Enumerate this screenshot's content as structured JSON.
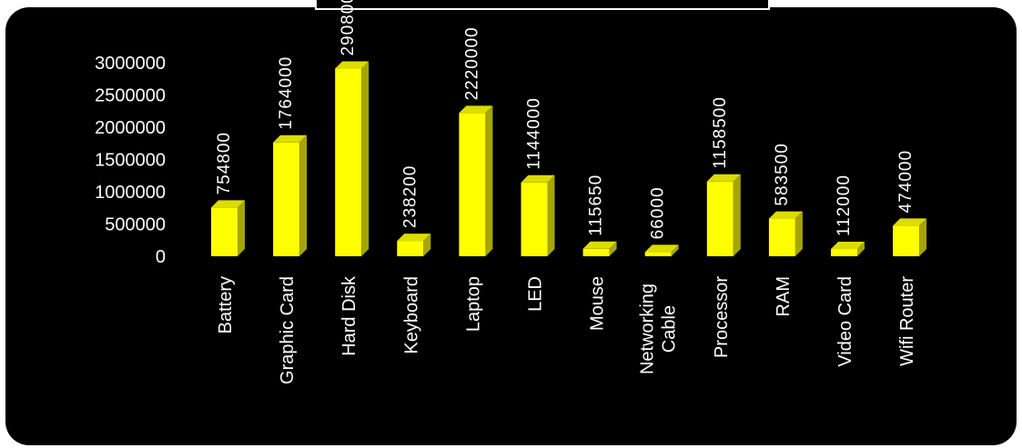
{
  "chart_data": {
    "type": "bar",
    "title": "",
    "xlabel": "",
    "ylabel": "",
    "ylim": [
      0,
      3000000
    ],
    "y_ticks": [
      0,
      500000,
      1000000,
      1500000,
      2000000,
      2500000,
      3000000
    ],
    "y_tick_labels": [
      "0",
      "500000",
      "1000000",
      "1500000",
      "2000000",
      "2500000",
      "3000000"
    ],
    "categories": [
      "Battery",
      "Graphic Card",
      "Hard Disk",
      "Keyboard",
      "Laptop",
      "LED",
      "Mouse",
      "Networking Cable",
      "Processor",
      "RAM",
      "Video Card",
      "Wifi Router"
    ],
    "category_lines": [
      [
        "Battery"
      ],
      [
        "Graphic Card"
      ],
      [
        "Hard Disk"
      ],
      [
        "Keyboard"
      ],
      [
        "Laptop"
      ],
      [
        "LED"
      ],
      [
        "Mouse"
      ],
      [
        "Networking",
        "Cable"
      ],
      [
        "Processor"
      ],
      [
        "RAM"
      ],
      [
        "Video Card"
      ],
      [
        "Wifi Router"
      ]
    ],
    "values": [
      754800,
      1764000,
      2908000,
      238200,
      2220000,
      1144000,
      115650,
      66000,
      1158500,
      583500,
      112000,
      474000
    ],
    "value_labels": [
      "754800",
      "1764000",
      "2908000",
      "238200",
      "2220000",
      "1144000",
      "115650",
      "66000",
      "1158500",
      "583500",
      "112000",
      "474000"
    ],
    "grid": false,
    "legend": "none",
    "style": "3d-bar",
    "colors": {
      "background": "#000000",
      "bar_front": "#ffff00",
      "bar_side": "#a6a600",
      "bar_top": "#dcdc00",
      "text": "#ffffff"
    }
  }
}
